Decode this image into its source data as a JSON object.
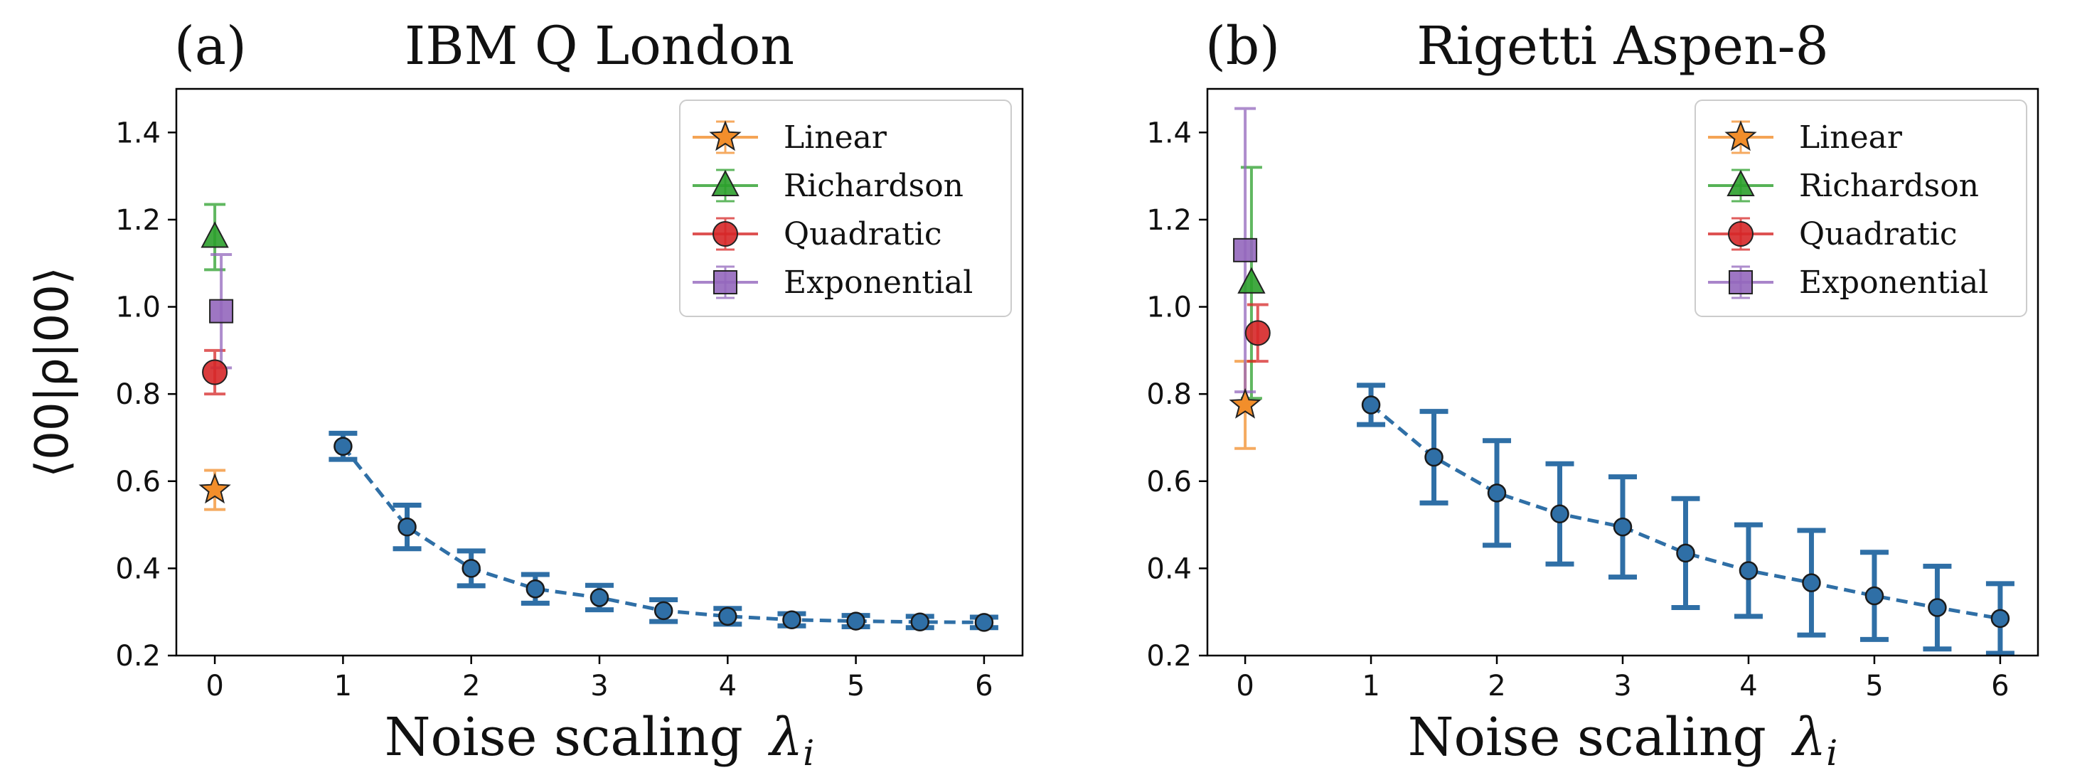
{
  "chart_data": [
    {
      "type": "scatter",
      "panel_label": "(a)",
      "title": "IBM Q London",
      "xlabel": "Noise scaling λi",
      "ylabel": "⟨00|ρ|00⟩",
      "xlim": [
        -0.3,
        6.3
      ],
      "ylim": [
        0.2,
        1.5
      ],
      "xticks": [
        0,
        1,
        2,
        3,
        4,
        5,
        6
      ],
      "yticks": [
        0.2,
        0.4,
        0.6,
        0.8,
        1.0,
        1.2,
        1.4
      ],
      "ytick_labels": [
        "0.2",
        "0.4",
        "0.6",
        "0.8",
        "1.0",
        "1.2",
        "1.4"
      ],
      "grid": false,
      "legend_position": "top-right",
      "measured": {
        "color": "#2f6fa6",
        "x": [
          1,
          1.5,
          2,
          2.5,
          3,
          3.5,
          4,
          4.5,
          5,
          5.5,
          6
        ],
        "y": [
          0.68,
          0.495,
          0.4,
          0.353,
          0.333,
          0.303,
          0.29,
          0.282,
          0.279,
          0.277,
          0.276
        ],
        "err": [
          0.03,
          0.05,
          0.04,
          0.033,
          0.028,
          0.025,
          0.018,
          0.014,
          0.013,
          0.013,
          0.012
        ]
      },
      "extrapolations": [
        {
          "name": "Linear",
          "marker": "star",
          "color": "#f28e2b",
          "x": 0,
          "y": 0.58,
          "err": 0.045
        },
        {
          "name": "Richardson",
          "marker": "triangle",
          "color": "#2ca02c",
          "x": 0,
          "y": 1.16,
          "err": 0.075
        },
        {
          "name": "Quadratic",
          "marker": "circle",
          "color": "#d62728",
          "x": 0,
          "y": 0.85,
          "err": 0.05
        },
        {
          "name": "Exponential",
          "marker": "square",
          "color": "#9467bd",
          "x": 0.05,
          "y": 0.99,
          "err": 0.13
        }
      ]
    },
    {
      "type": "scatter",
      "panel_label": "(b)",
      "title": "Rigetti Aspen-8",
      "xlabel": "Noise scaling λi",
      "ylabel": "",
      "xlim": [
        -0.3,
        6.3
      ],
      "ylim": [
        0.2,
        1.5
      ],
      "xticks": [
        0,
        1,
        2,
        3,
        4,
        5,
        6
      ],
      "yticks": [
        0.2,
        0.4,
        0.6,
        0.8,
        1.0,
        1.2,
        1.4
      ],
      "ytick_labels": [
        "0.2",
        "0.4",
        "0.6",
        "0.8",
        "1.0",
        "1.2",
        "1.4"
      ],
      "grid": false,
      "legend_position": "top-right",
      "measured": {
        "color": "#2f6fa6",
        "x": [
          1,
          1.5,
          2,
          2.5,
          3,
          3.5,
          4,
          4.5,
          5,
          5.5,
          6
        ],
        "y": [
          0.775,
          0.655,
          0.573,
          0.525,
          0.495,
          0.435,
          0.395,
          0.367,
          0.337,
          0.31,
          0.285
        ],
        "err": [
          0.045,
          0.105,
          0.12,
          0.115,
          0.115,
          0.125,
          0.105,
          0.12,
          0.1,
          0.095,
          0.08
        ]
      },
      "extrapolations": [
        {
          "name": "Linear",
          "marker": "star",
          "color": "#f28e2b",
          "x": 0,
          "y": 0.775,
          "err": 0.1
        },
        {
          "name": "Richardson",
          "marker": "triangle",
          "color": "#2ca02c",
          "x": 0.05,
          "y": 1.055,
          "err": 0.265
        },
        {
          "name": "Quadratic",
          "marker": "circle",
          "color": "#d62728",
          "x": 0.1,
          "y": 0.94,
          "err": 0.065
        },
        {
          "name": "Exponential",
          "marker": "square",
          "color": "#9467bd",
          "x": 0,
          "y": 1.13,
          "err": 0.325
        }
      ]
    }
  ]
}
